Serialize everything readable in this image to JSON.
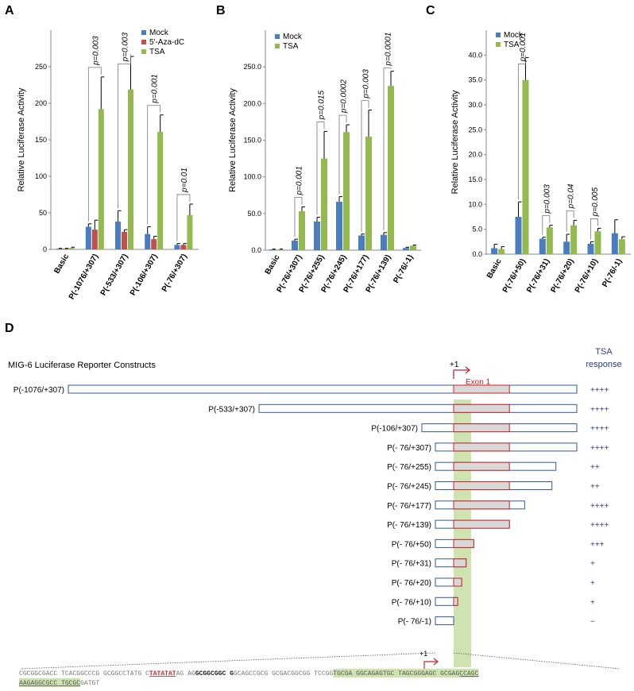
{
  "colors": {
    "mock": "#4a7cc0",
    "aza": "#c0504d",
    "tsa": "#93b94f",
    "construct_outline": "#2f5a96",
    "exon_outline": "#cc2222",
    "exon_fill": "#d8d8d8",
    "highlight": "#cfe3b0",
    "arrow": "#c0282d",
    "tsa_text": "#2c3a8a"
  },
  "chart_data": [
    {
      "type": "bar",
      "panel": "A",
      "ylabel": "Relative Luciferase Activity",
      "ylim": [
        0,
        300
      ],
      "yticks": [
        "0",
        "50",
        "100",
        "150",
        "200",
        "250"
      ],
      "ytick_values": [
        0,
        50,
        100,
        150,
        200,
        250
      ],
      "categories": [
        "Basic",
        "P(-1076/+307)",
        "P(-533/+307)",
        "P(-106/+307)",
        "P(-76/+307)"
      ],
      "series": [
        {
          "name": "Mock",
          "color_key": "mock",
          "values": [
            1,
            31,
            38,
            21,
            6
          ],
          "errors": [
            0.5,
            4,
            15,
            10,
            2
          ]
        },
        {
          "name": "5'-Aza-dC",
          "color_key": "aza",
          "values": [
            1,
            27,
            24,
            14,
            6
          ],
          "errors": [
            0.5,
            13,
            3,
            4,
            2
          ]
        },
        {
          "name": "TSA",
          "color_key": "tsa",
          "values": [
            2,
            192,
            219,
            161,
            47
          ],
          "errors": [
            1,
            44,
            45,
            23,
            15
          ]
        }
      ],
      "pvalues": [
        {
          "category": 1,
          "label": "p=0.003"
        },
        {
          "category": 2,
          "label": "p=0.003"
        },
        {
          "category": 3,
          "label": "p=0.001"
        },
        {
          "category": 4,
          "label": "p=0.01"
        }
      ],
      "legend": "top-right"
    },
    {
      "type": "bar",
      "panel": "B",
      "ylabel": "Relative Luciferase Activity",
      "ylim": [
        0,
        300
      ],
      "yticks": [
        "0.0",
        "50.0",
        "100.0",
        "150.0",
        "200.0",
        "250.0"
      ],
      "ytick_values": [
        0,
        50,
        100,
        150,
        200,
        250
      ],
      "categories": [
        "Basic",
        "P(-76/+307)",
        "P(-76/+255)",
        "P(-76/+245)",
        "P(-76/+177)",
        "P(-76/+139)",
        "P(-76/-1)"
      ],
      "series": [
        {
          "name": "Mock",
          "color_key": "mock",
          "values": [
            1,
            13,
            39,
            66,
            20,
            21,
            3
          ],
          "errors": [
            0.5,
            2,
            6,
            7,
            2,
            3,
            1
          ]
        },
        {
          "name": "TSA",
          "color_key": "tsa",
          "values": [
            1,
            53,
            125,
            161,
            155,
            224,
            6
          ],
          "errors": [
            0.5,
            6,
            37,
            10,
            36,
            20,
            1
          ]
        }
      ],
      "pvalues": [
        {
          "category": 1,
          "label": "p=0.001"
        },
        {
          "category": 2,
          "label": "p=0.015"
        },
        {
          "category": 3,
          "label": "p=0.0002"
        },
        {
          "category": 4,
          "label": "p=0.003"
        },
        {
          "category": 5,
          "label": "p=0.0001"
        }
      ],
      "legend": "top-left"
    },
    {
      "type": "bar",
      "panel": "C",
      "ylabel": "Relative Luciferase Activity",
      "ylim": [
        0,
        45
      ],
      "yticks": [
        "0.0",
        "5.0",
        "10.0",
        "15.0",
        "20.0",
        "25.0",
        "30.0",
        "35.0",
        "40.0"
      ],
      "ytick_values": [
        0,
        5,
        10,
        15,
        20,
        25,
        30,
        35,
        40
      ],
      "categories": [
        "Basic",
        "P(-76/+50)",
        "P(-76/+31)",
        "P(-76/+20)",
        "P(-76/+10)",
        "P(-76/-1)"
      ],
      "series": [
        {
          "name": "Mock",
          "color_key": "mock",
          "values": [
            1.2,
            7.5,
            3.1,
            2.5,
            2.1,
            4.2
          ],
          "errors": [
            0.8,
            3,
            0.3,
            1.5,
            0.4,
            2.7
          ]
        },
        {
          "name": "TSA",
          "color_key": "tsa",
          "values": [
            1,
            35,
            5.4,
            5.8,
            4.6,
            3
          ],
          "errors": [
            0.5,
            4.5,
            0.4,
            1,
            0.6,
            0.5
          ]
        }
      ],
      "pvalues": [
        {
          "category": 1,
          "label": "p=0.001"
        },
        {
          "category": 2,
          "label": "p=0.003"
        },
        {
          "category": 3,
          "label": "p=0.04"
        },
        {
          "category": 4,
          "label": "p=0.005"
        }
      ],
      "legend": "top-left"
    }
  ],
  "panel_d": {
    "letter": "D",
    "title": "MIG-6 Luciferase Reporter Constructs",
    "tsa_header": "TSA\nresponse",
    "plus_one": "+1",
    "exon_label": "Exon 1",
    "constructs": [
      {
        "label": "P(-1076/+307)",
        "start": -1076,
        "end": 307,
        "response": "++++"
      },
      {
        "label": "P(-533/+307)",
        "start": -533,
        "end": 307,
        "response": "++++"
      },
      {
        "label": "P(-106/+307)",
        "start": -106,
        "end": 307,
        "response": "++++"
      },
      {
        "label": "P(- 76/+307)",
        "start": -76,
        "end": 307,
        "response": "++++"
      },
      {
        "label": "P(- 76/+255)",
        "start": -76,
        "end": 255,
        "response": "++"
      },
      {
        "label": "P(- 76/+245)",
        "start": -76,
        "end": 245,
        "response": "++"
      },
      {
        "label": "P(- 76/+177)",
        "start": -76,
        "end": 177,
        "response": "++++"
      },
      {
        "label": "P(- 76/+139)",
        "start": -76,
        "end": 139,
        "response": "++++"
      },
      {
        "label": "P(- 76/+50)",
        "start": -76,
        "end": 50,
        "response": "+++"
      },
      {
        "label": "P(- 76/+31)",
        "start": -76,
        "end": 31,
        "response": "+"
      },
      {
        "label": "P(- 76/+20)",
        "start": -76,
        "end": 20,
        "response": "+"
      },
      {
        "label": "P(- 76/+10)",
        "start": -76,
        "end": 10,
        "response": "+"
      },
      {
        "label": "P(- 76/-1)",
        "start": -76,
        "end": -1,
        "response": "−"
      }
    ],
    "sequence": {
      "line1": [
        {
          "text": "CGCGGCGACC TCACGGCCCG GCGGCCTATG C",
          "style": "plain"
        },
        {
          "text": "TATATAT",
          "style": "tata"
        },
        {
          "text": "AG AG",
          "style": "plain"
        },
        {
          "text": "GCGGCGGC G",
          "style": "bold"
        },
        {
          "text": "GCAGCCGCG GCGACGGCGG TCCGG",
          "style": "plain"
        },
        {
          "text": "TGCGA GGCAGAGTGC TAGCGGGAGC GCGAG",
          "style": "hl"
        },
        {
          "text": "CCAGC",
          "style": "hlu"
        }
      ],
      "line2": [
        {
          "text": "AAGAGGCGCC TGCGC",
          "style": "hlu"
        },
        {
          "text": "GATGT",
          "style": "plain"
        }
      ]
    }
  }
}
